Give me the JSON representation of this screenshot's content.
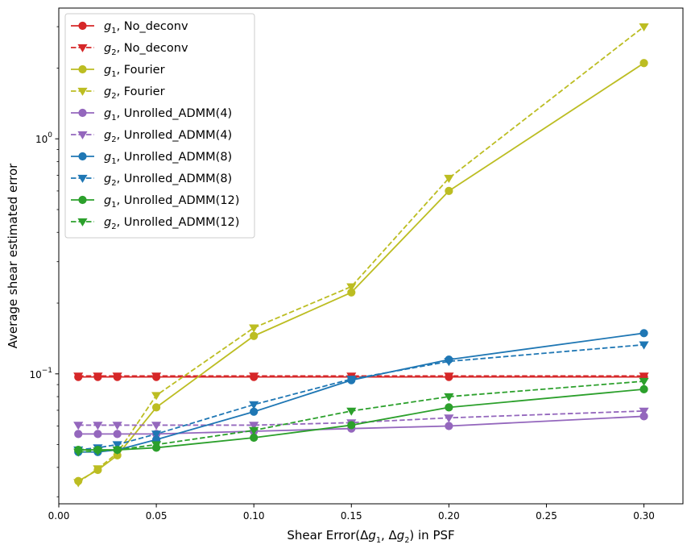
{
  "chart_data": {
    "type": "line",
    "title": "",
    "xlabel": "Shear Error(Δg1, Δg2) in PSF",
    "xlabel_parts": {
      "prefix": "Shear Error(Δ",
      "sub1": "g1",
      "mid": ", Δ",
      "sub2": "g2",
      "suffix": ") in PSF"
    },
    "ylabel": "Average shear estimated error",
    "xlim": [
      0.0,
      0.32
    ],
    "ylim": [
      0.028,
      3.6
    ],
    "yscale": "log",
    "x": [
      0.01,
      0.02,
      0.03,
      0.05,
      0.1,
      0.15,
      0.2,
      0.3
    ],
    "x_ticks": [
      0.0,
      0.05,
      0.1,
      0.15,
      0.2,
      0.25,
      0.3
    ],
    "x_tick_labels": [
      "0.00",
      "0.05",
      "0.10",
      "0.15",
      "0.20",
      "0.25",
      "0.30"
    ],
    "y_ticks_major": [
      {
        "value": 0.1,
        "base": "10",
        "exp": "−1"
      },
      {
        "value": 1.0,
        "base": "10",
        "exp": "0"
      }
    ],
    "y_ticks_minor": [
      0.03,
      0.04,
      0.05,
      0.06,
      0.07,
      0.08,
      0.09,
      0.2,
      0.3,
      0.4,
      0.5,
      0.6,
      0.7,
      0.8,
      0.9,
      2,
      3
    ],
    "grid": false,
    "legend_position": "top-left",
    "series": [
      {
        "var": "g",
        "sub": "1",
        "method": ", No_deconv",
        "name": "g1, No_deconv",
        "color": "#d62728",
        "dashed": false,
        "marker": "circle",
        "values": [
          0.097,
          0.097,
          0.097,
          0.097,
          0.097,
          0.097,
          0.097,
          0.097
        ]
      },
      {
        "var": "g",
        "sub": "2",
        "method": ", No_deconv",
        "name": "g2, No_deconv",
        "color": "#d62728",
        "dashed": true,
        "marker": "triangle",
        "values": [
          0.098,
          0.098,
          0.098,
          0.098,
          0.098,
          0.098,
          0.098,
          0.098
        ]
      },
      {
        "var": "g",
        "sub": "1",
        "method": ", Fourier",
        "name": "g1, Fourier",
        "color": "#bcbd22",
        "dashed": false,
        "marker": "circle",
        "values": [
          0.035,
          0.039,
          0.045,
          0.072,
          0.145,
          0.222,
          0.6,
          2.1
        ]
      },
      {
        "var": "g",
        "sub": "2",
        "method": ", Fourier",
        "name": "g2, Fourier",
        "color": "#bcbd22",
        "dashed": true,
        "marker": "triangle",
        "values": [
          0.0345,
          0.0395,
          0.046,
          0.081,
          0.157,
          0.235,
          0.68,
          3.0
        ]
      },
      {
        "var": "g",
        "sub": "1",
        "method": ", Unrolled_ADMM(4)",
        "name": "g1, Unrolled_ADMM(4)",
        "color": "#9467bd",
        "dashed": false,
        "marker": "circle",
        "values": [
          0.0555,
          0.0555,
          0.0555,
          0.0555,
          0.057,
          0.0585,
          0.06,
          0.066
        ]
      },
      {
        "var": "g",
        "sub": "2",
        "method": ", Unrolled_ADMM(4)",
        "name": "g2, Unrolled_ADMM(4)",
        "color": "#9467bd",
        "dashed": true,
        "marker": "triangle",
        "values": [
          0.0605,
          0.0605,
          0.0605,
          0.0605,
          0.0605,
          0.062,
          0.065,
          0.0695
        ]
      },
      {
        "var": "g",
        "sub": "1",
        "method": ", Unrolled_ADMM(8)",
        "name": "g1, Unrolled_ADMM(8)",
        "color": "#1f77b4",
        "dashed": false,
        "marker": "circle",
        "values": [
          0.0465,
          0.0465,
          0.0475,
          0.0525,
          0.069,
          0.094,
          0.115,
          0.149
        ]
      },
      {
        "var": "g",
        "sub": "2",
        "method": ", Unrolled_ADMM(8)",
        "name": "g2, Unrolled_ADMM(8)",
        "color": "#1f77b4",
        "dashed": true,
        "marker": "triangle",
        "values": [
          0.0475,
          0.0485,
          0.05,
          0.0555,
          0.074,
          0.095,
          0.113,
          0.133
        ]
      },
      {
        "var": "g",
        "sub": "1",
        "method": ", Unrolled_ADMM(12)",
        "name": "g1, Unrolled_ADMM(12)",
        "color": "#2ca02c",
        "dashed": false,
        "marker": "circle",
        "values": [
          0.0475,
          0.0475,
          0.0475,
          0.0485,
          0.0535,
          0.0605,
          0.072,
          0.086
        ]
      },
      {
        "var": "g",
        "sub": "2",
        "method": ", Unrolled_ADMM(12)",
        "name": "g2, Unrolled_ADMM(12)",
        "color": "#2ca02c",
        "dashed": true,
        "marker": "triangle",
        "values": [
          0.0465,
          0.047,
          0.0475,
          0.05,
          0.0575,
          0.0695,
          0.08,
          0.093
        ]
      }
    ]
  }
}
